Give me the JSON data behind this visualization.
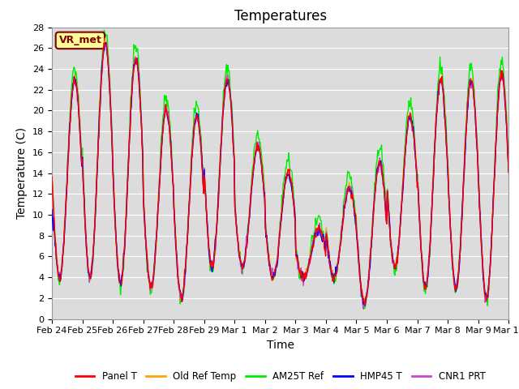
{
  "title": "Temperatures",
  "xlabel": "Time",
  "ylabel": "Temperature (C)",
  "ylim": [
    0,
    28
  ],
  "yticks": [
    0,
    2,
    4,
    6,
    8,
    10,
    12,
    14,
    16,
    18,
    20,
    22,
    24,
    26,
    28
  ],
  "xtick_labels": [
    "Feb 24",
    "Feb 25",
    "Feb 26",
    "Feb 27",
    "Feb 28",
    "Feb 29",
    "Mar 1",
    "Mar 2",
    "Mar 3",
    "Mar 4",
    "Mar 5",
    "Mar 6",
    "Mar 7",
    "Mar 8",
    "Mar 9",
    "Mar 10"
  ],
  "annotation_text": "VR_met",
  "annotation_box_color": "#FFFF99",
  "annotation_border_color": "#800000",
  "fig_bg_color": "#FFFFFF",
  "plot_bg_color": "#DCDCDC",
  "grid_color": "#FFFFFF",
  "legend_entries": [
    "Panel T",
    "Old Ref Temp",
    "AM25T Ref",
    "HMP45 T",
    "CNR1 PRT"
  ],
  "line_colors": [
    "#FF0000",
    "#FFA500",
    "#00EE00",
    "#0000FF",
    "#CC44CC"
  ],
  "line_width": 1.0,
  "title_fontsize": 12,
  "axis_fontsize": 10,
  "tick_fontsize": 8
}
